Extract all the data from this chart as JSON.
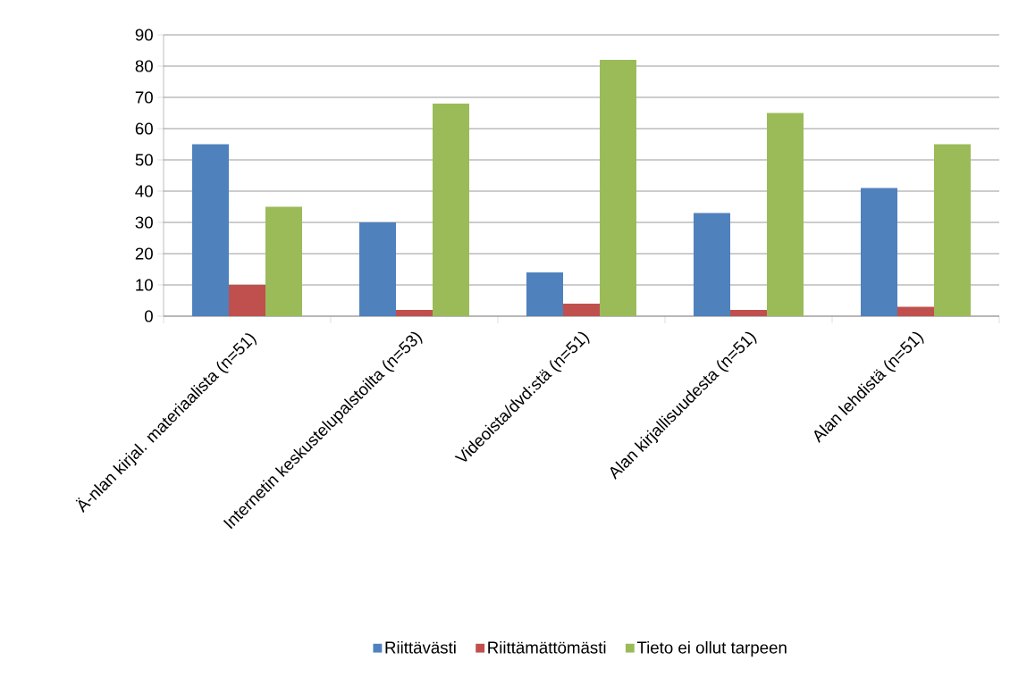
{
  "chart_data": {
    "type": "bar",
    "categories": [
      "Ä-nlan kirjal. materiaalista (n=51)",
      "Internetin keskustelupalstoilta (n=53)",
      "Videoista/dvd:stä (n=51)",
      "Alan kirjallisuudesta (n=51)",
      "Alan lehdistä (n=51)"
    ],
    "series": [
      {
        "name": "Riittävästi",
        "color": "#4f81bd",
        "values": [
          55,
          30,
          14,
          33,
          41
        ]
      },
      {
        "name": "Riittämättömästi",
        "color": "#c0504d",
        "values": [
          10,
          2,
          4,
          2,
          3
        ]
      },
      {
        "name": "Tieto ei ollut tarpeen",
        "color": "#9bbb59",
        "values": [
          35,
          68,
          82,
          65,
          55
        ]
      }
    ],
    "ylim": [
      0,
      90
    ],
    "yticks": [
      0,
      10,
      20,
      30,
      40,
      50,
      60,
      70,
      80,
      90
    ],
    "grid": "y",
    "legend": "bottom"
  }
}
